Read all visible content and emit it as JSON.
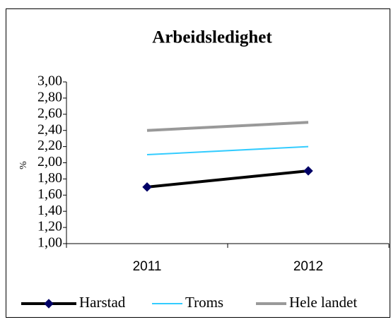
{
  "chart_data": {
    "type": "line",
    "title": "Arbeidsledighet",
    "y_label": "%",
    "categories": [
      "2011",
      "2012"
    ],
    "series": [
      {
        "name": "Harstad",
        "color": "#000000",
        "values": [
          1.7,
          1.9
        ],
        "marker": "diamond",
        "marker_color": "#000066"
      },
      {
        "name": "Troms",
        "color": "#33ccff",
        "values": [
          2.1,
          2.2
        ]
      },
      {
        "name": "Hele landet",
        "color": "#999999",
        "values": [
          2.4,
          2.5
        ]
      }
    ],
    "ylim": [
      1.0,
      3.0
    ],
    "yticks": [
      {
        "value": 1.0,
        "label": "1,00"
      },
      {
        "value": 1.2,
        "label": "1,20"
      },
      {
        "value": 1.4,
        "label": "1,40"
      },
      {
        "value": 1.6,
        "label": "1,60"
      },
      {
        "value": 1.8,
        "label": "1,80"
      },
      {
        "value": 2.0,
        "label": "2,00"
      },
      {
        "value": 2.2,
        "label": "2,20"
      },
      {
        "value": 2.4,
        "label": "2,40"
      },
      {
        "value": 2.6,
        "label": "2,60"
      },
      {
        "value": 2.8,
        "label": "2,80"
      },
      {
        "value": 3.0,
        "label": "3,00"
      }
    ],
    "grid": false,
    "legend": "bottom"
  }
}
